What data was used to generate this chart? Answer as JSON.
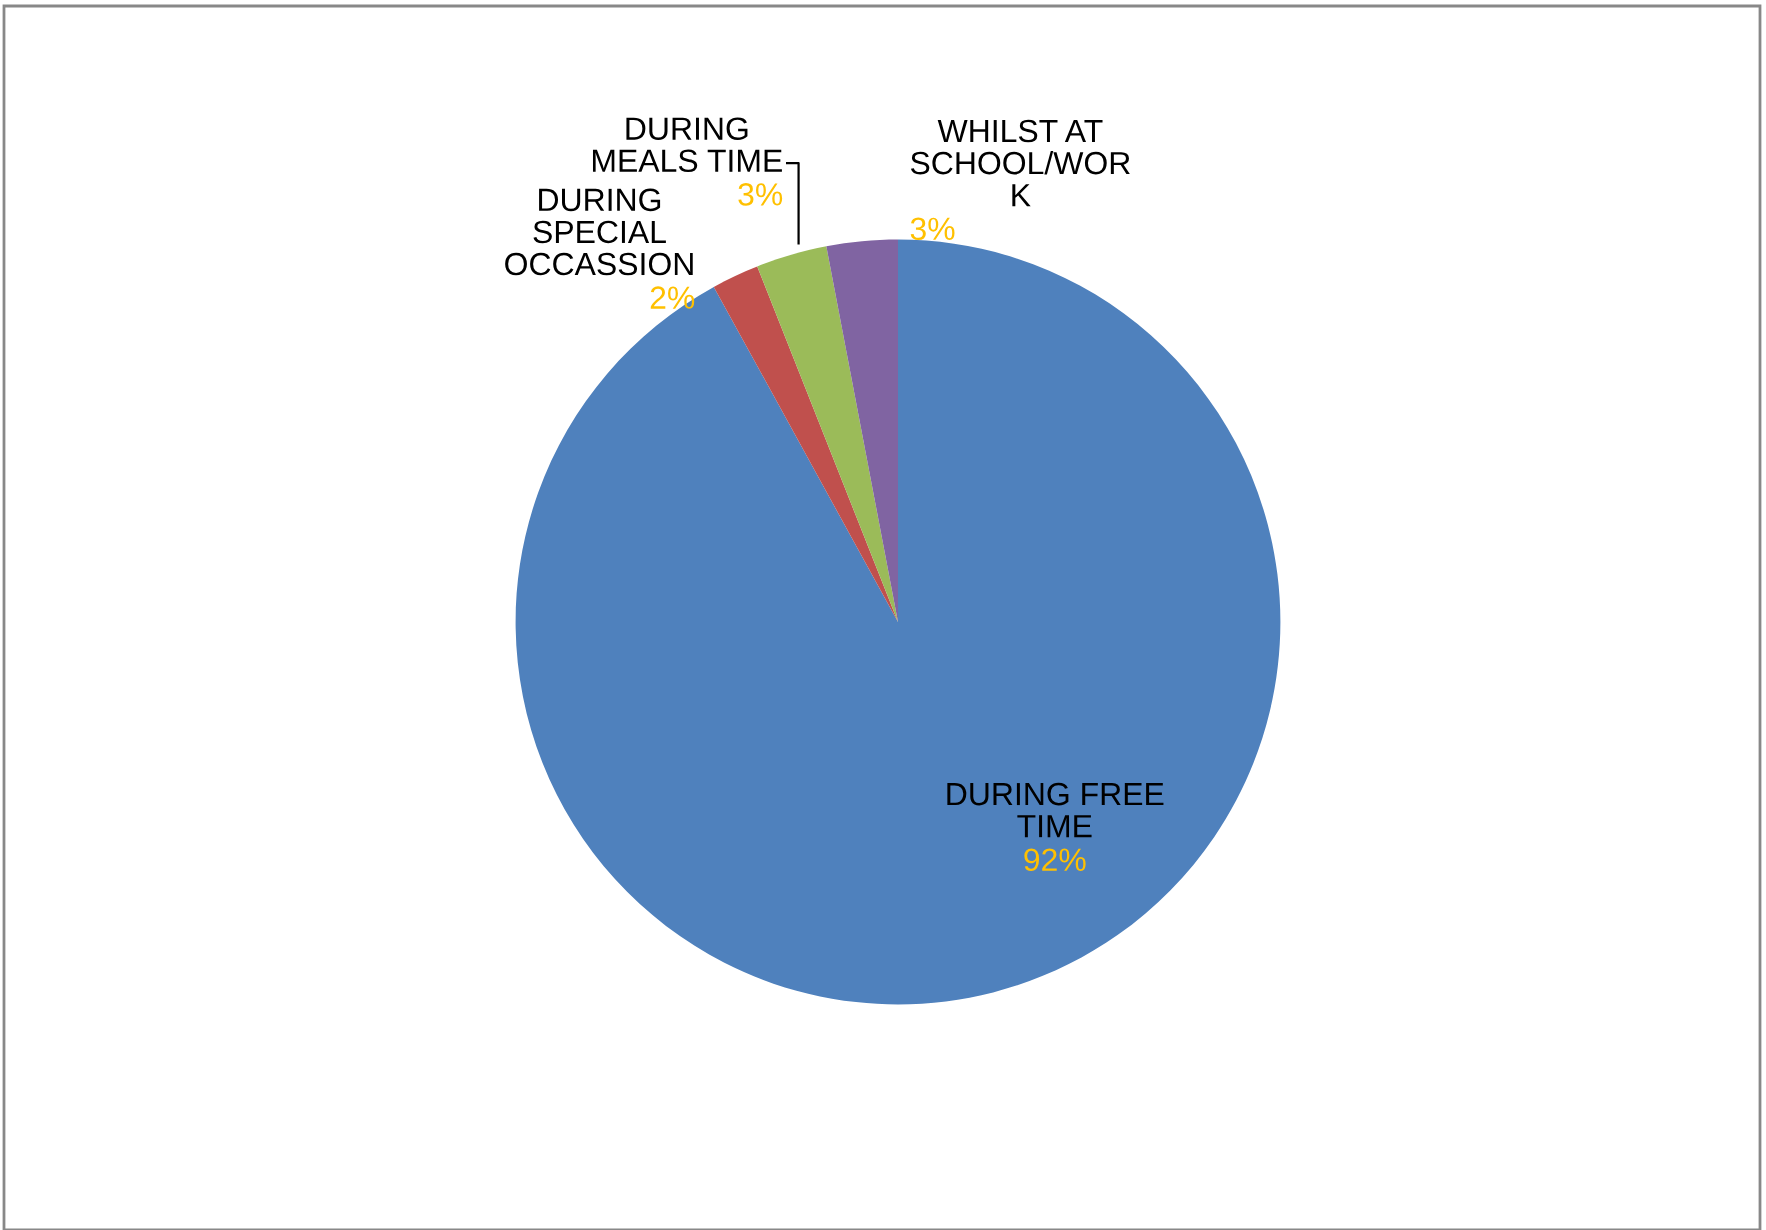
{
  "chart_data": {
    "type": "pie",
    "categories": [
      "DURING FREE\nTIME",
      "DURING\nSPECIAL\nOCCASSION",
      "DURING\nMEALS TIME",
      "WHILST AT\nSCHOOL/WOR\nK"
    ],
    "values": [
      92,
      2,
      3,
      3
    ],
    "colors": [
      "#4f81bd",
      "#c0504d",
      "#9bbb59",
      "#8064a2"
    ],
    "value_labels": [
      "92%",
      "2%",
      "3%",
      "3%"
    ],
    "legend": false
  }
}
